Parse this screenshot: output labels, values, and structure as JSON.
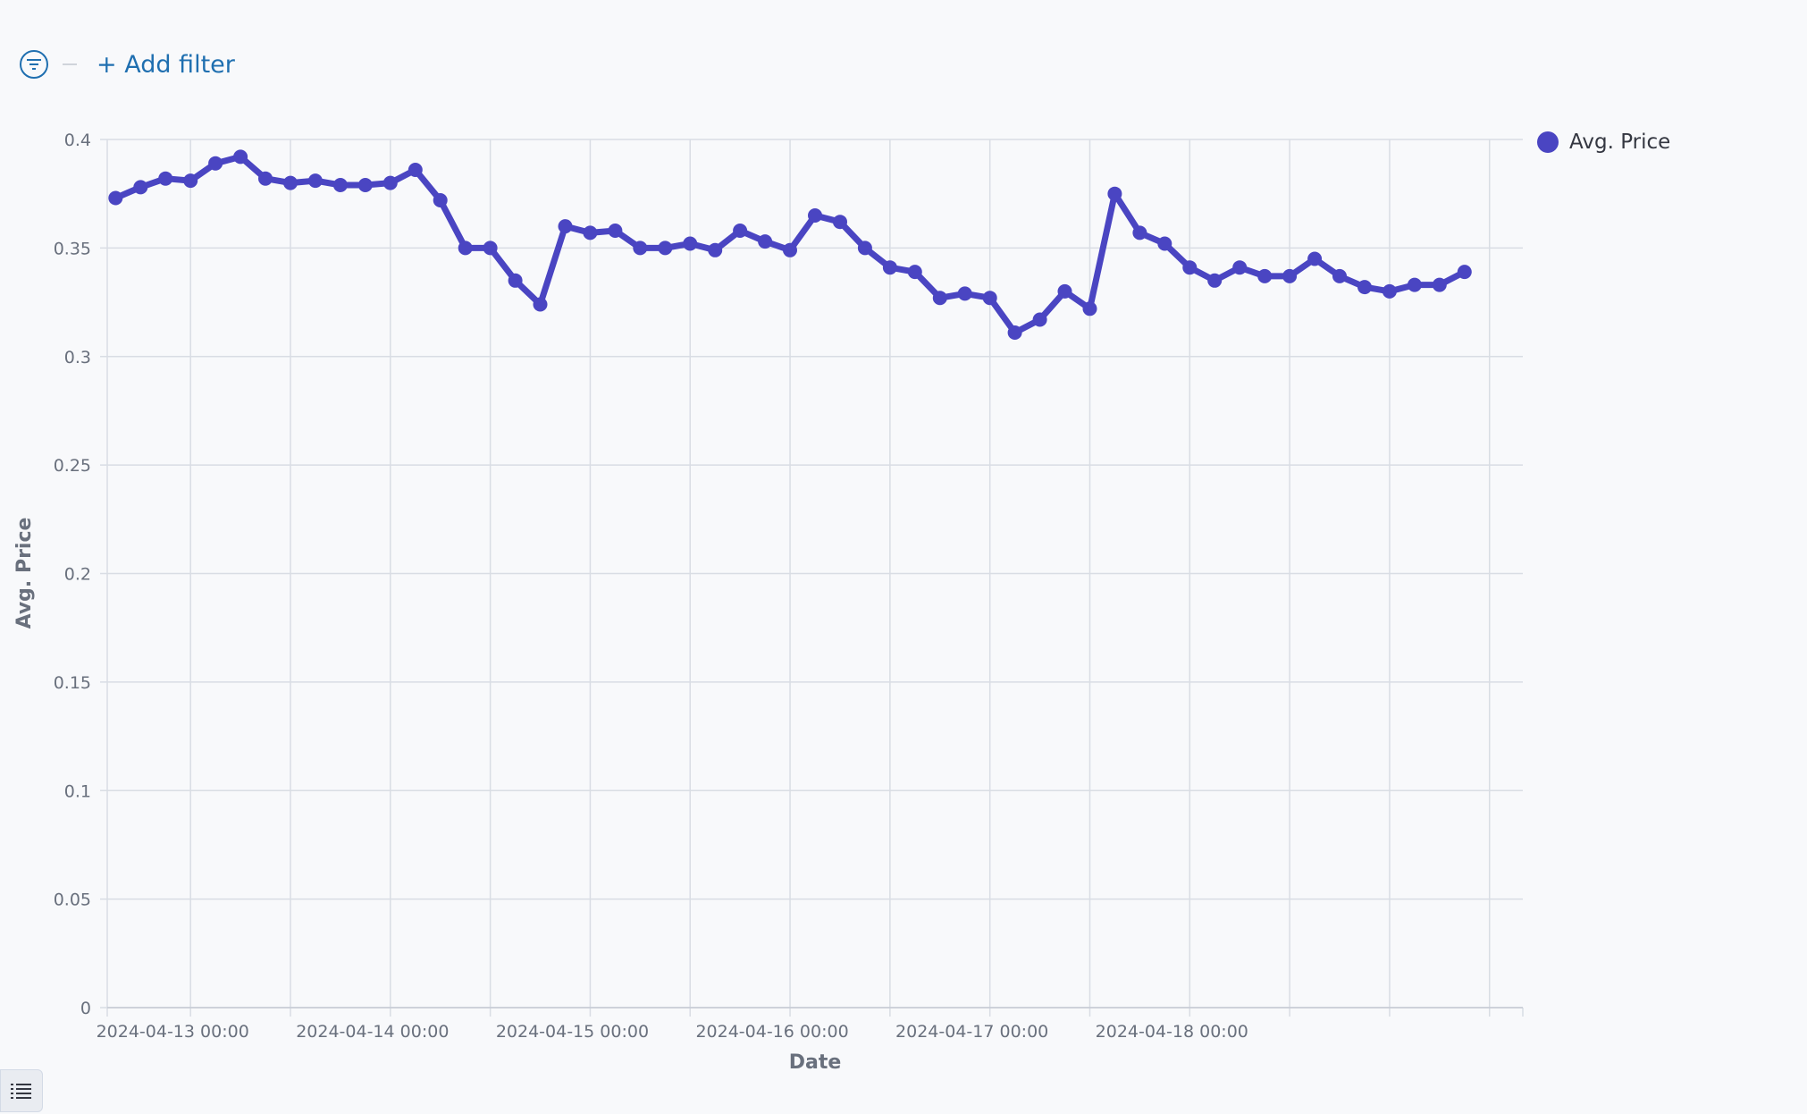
{
  "filter_bar": {
    "add_filter_label": "+ Add filter",
    "filter_icon": "filter-icon"
  },
  "legend": {
    "label": "Avg. Price",
    "color": "#4a45c2"
  },
  "legend_toggle": {
    "icon": "list-icon"
  },
  "colors": {
    "series": "#4a45c2",
    "grid": "#d9dde4",
    "axis_text": "#69707d",
    "link": "#1f6fb0"
  },
  "chart_data": {
    "type": "line",
    "title": "",
    "xlabel": "Date",
    "ylabel": "Avg. Price",
    "ylim": [
      0,
      0.4
    ],
    "yticks": [
      0,
      0.05,
      0.1,
      0.15,
      0.2,
      0.25,
      0.3,
      0.35,
      0.4
    ],
    "xlim": [
      "2024-04-12 14:00",
      "2024-04-19 16:00"
    ],
    "xticks": [
      "2024-04-13 00:00",
      "2024-04-14 00:00",
      "2024-04-15 00:00",
      "2024-04-16 00:00",
      "2024-04-17 00:00",
      "2024-04-18 00:00"
    ],
    "grid": true,
    "legend_position": "top-right",
    "x_interval_hours": 3,
    "series": [
      {
        "name": "Avg. Price",
        "x_start": "2024-04-12 15:00",
        "values": [
          0.373,
          0.378,
          0.382,
          0.381,
          0.389,
          0.392,
          0.382,
          0.38,
          0.381,
          0.379,
          0.379,
          0.38,
          0.386,
          0.372,
          0.35,
          0.35,
          0.335,
          0.324,
          0.36,
          0.357,
          0.358,
          0.35,
          0.35,
          0.352,
          0.349,
          0.358,
          0.353,
          0.349,
          0.365,
          0.362,
          0.35,
          0.341,
          0.339,
          0.327,
          0.329,
          0.327,
          0.311,
          0.317,
          0.33,
          0.322,
          0.375,
          0.357,
          0.352,
          0.341,
          0.335,
          0.341,
          0.337,
          0.337,
          0.345,
          0.337,
          0.332,
          0.33,
          0.333,
          0.333,
          0.339
        ]
      }
    ]
  }
}
